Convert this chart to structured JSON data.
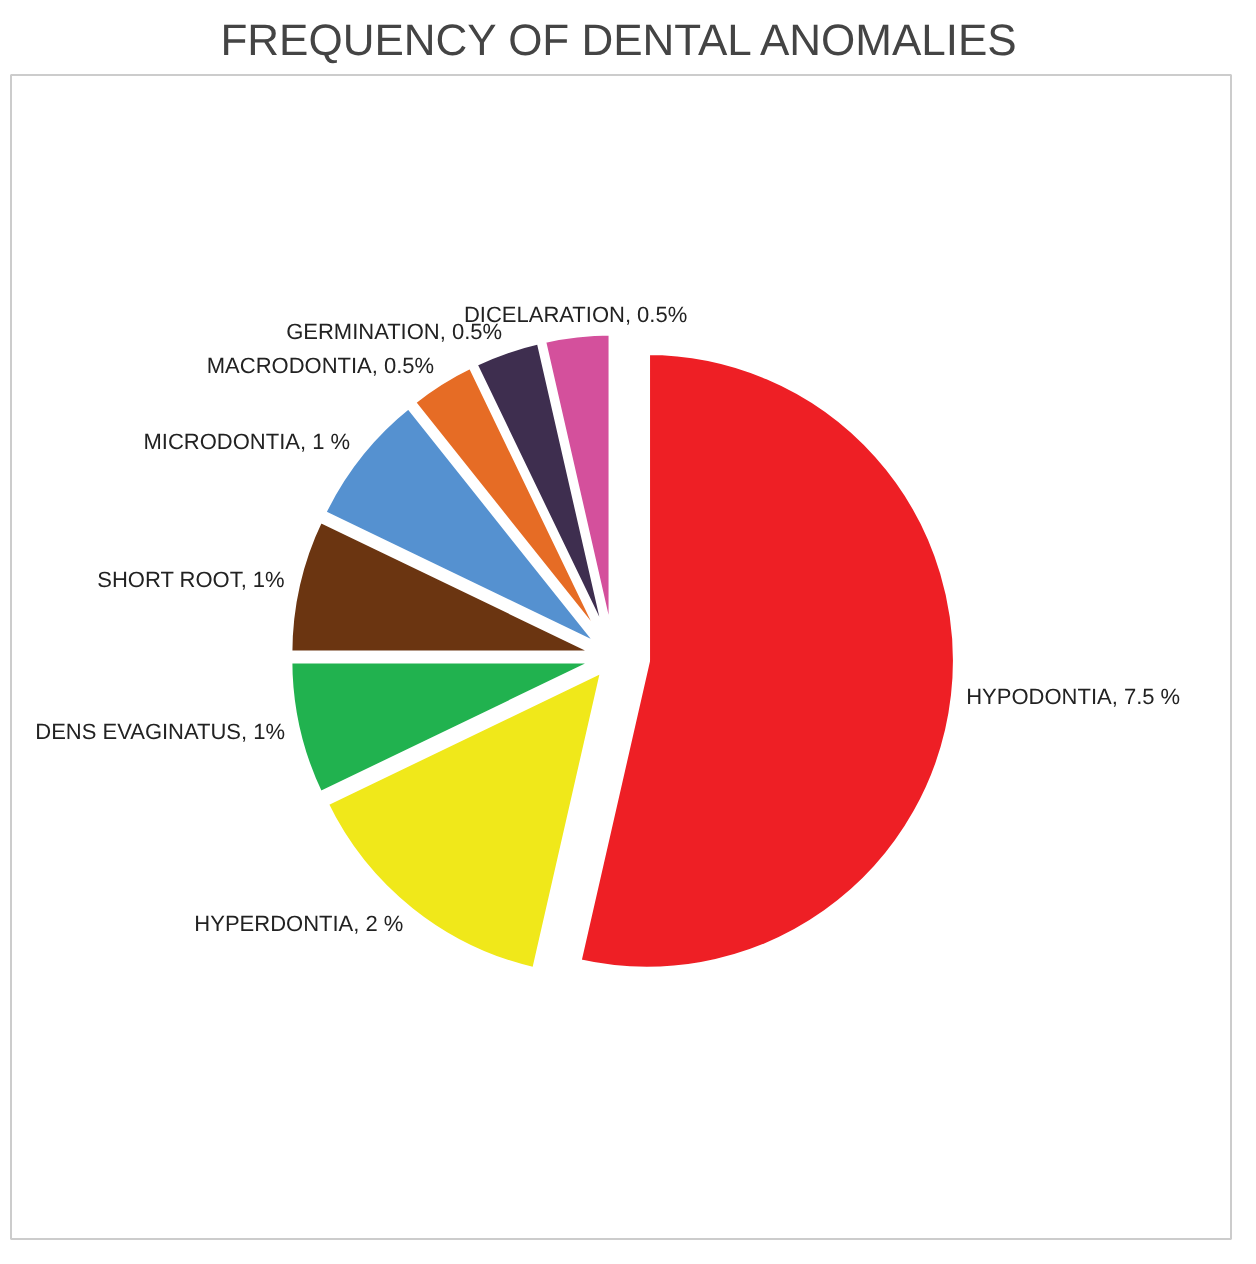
{
  "chart_data": {
    "type": "pie",
    "title": "FREQUENCY OF DENTAL ANOMALIES",
    "categories": [
      "HYPODONTIA",
      "HYPERDONTIA",
      "DENS EVAGINATUS",
      "SHORT ROOT",
      "MICRODONTIA",
      "MACRODONTIA",
      "GERMINATION",
      "DICELARATION"
    ],
    "values": [
      7.5,
      2,
      1,
      1,
      1,
      0.5,
      0.5,
      0.5
    ],
    "value_labels": [
      "7.5 %",
      "2 %",
      "1%",
      "1%",
      "1 %",
      "0.5%",
      "0.5%",
      "0.5%"
    ],
    "colors": [
      "#ee1f25",
      "#f0e81a",
      "#21b24f",
      "#6b3511",
      "#5591d0",
      "#e66c25",
      "#3e2e4f",
      "#d4509c"
    ]
  }
}
